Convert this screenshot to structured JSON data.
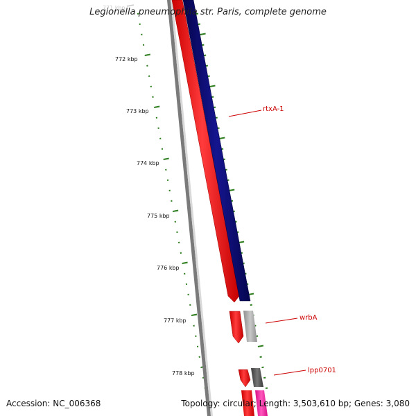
{
  "title": "Legionella pneumophila str. Paris, complete genome",
  "footer": {
    "accession": "Accession: NC_006368",
    "summary": "Topology: circular; Length: 3,503,610 bp; Genes: 3,080"
  },
  "scale": {
    "partial_label": "771 kbp",
    "labels": [
      "772 kbp",
      "773 kbp",
      "774 kbp",
      "775 kbp",
      "776 kbp",
      "777 kbp",
      "778 kbp"
    ]
  },
  "genes": [
    "rtxA-1",
    "wrbA",
    "lpp0701"
  ],
  "colors": {
    "tick": "#2e7d1e",
    "backbone": "#7a7a7a",
    "forward_red": "#ff1a1a",
    "navy": "#0c0c78",
    "grey": "#a8a8a8",
    "dark_grey": "#555555",
    "magenta": "#ff2aa8",
    "label_red": "#cc0000"
  }
}
